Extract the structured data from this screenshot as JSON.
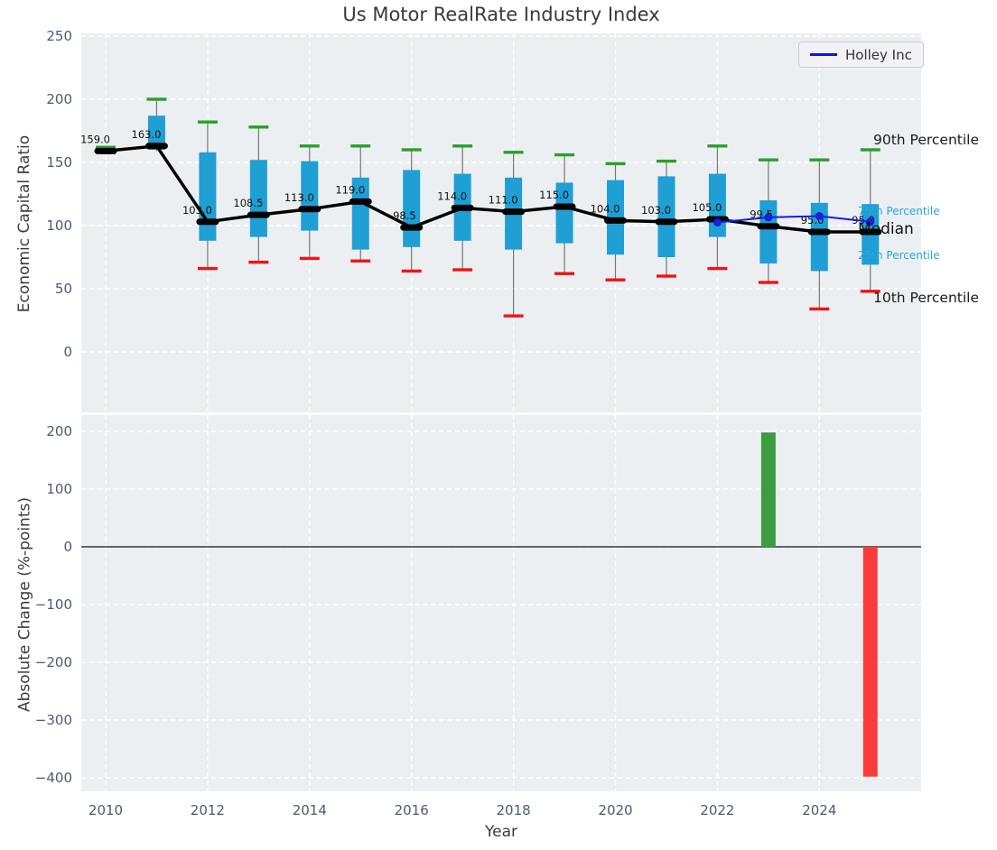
{
  "title": "Us Motor RealRate Industry Index",
  "legend": {
    "label": "Holley Inc"
  },
  "axes": {
    "top_ylabel": "Economic Capital Ratio",
    "bottom_ylabel": "Absolute Change (%-points)",
    "xlabel": "Year"
  },
  "annotations": {
    "p90": "90th Percentile",
    "p75": "75th Percentile",
    "median": "Median",
    "p25": "25th Percentile",
    "p10": "10th Percentile"
  },
  "colors": {
    "box_fill": "#1f9fd4",
    "cap_high": "#2aa02a",
    "cap_low": "#f11414",
    "whisker": "#777777",
    "median_line": "#000000",
    "company_line": "#1a1ae6",
    "company_dot": "#1f1fd8",
    "bar_positive": "#3d9c42",
    "bar_negative": "#fa3b3b",
    "plot_bg": "#eceff1",
    "grid": "#ffffff",
    "tick_text": "#4b5b72"
  },
  "chart_data": [
    {
      "type": "boxplot",
      "subplot": "top",
      "title": "Us Motor RealRate Industry Index",
      "ylabel": "Economic Capital Ratio",
      "ylim": [
        -48,
        252
      ],
      "yticks": [
        250,
        200,
        150,
        100,
        50,
        0
      ],
      "xlim": [
        2009.5,
        2026
      ],
      "xticks": [
        2010,
        2012,
        2014,
        2016,
        2018,
        2020,
        2022,
        2024
      ],
      "grid": true,
      "boxes": [
        {
          "year": 2010,
          "label": "159.0",
          "q10": 157.5,
          "q25": 158,
          "median": 159,
          "q75": 160.5,
          "q90": 162,
          "show_low_cap": false
        },
        {
          "year": 2011,
          "label": "163.0",
          "q10": 159,
          "q25": 160,
          "median": 163,
          "q75": 187,
          "q90": 200,
          "show_low_cap": false
        },
        {
          "year": 2012,
          "label": "103.0",
          "q10": 66,
          "q25": 88,
          "median": 103,
          "q75": 158,
          "q90": 182,
          "show_low_cap": true
        },
        {
          "year": 2013,
          "label": "108.5",
          "q10": 71,
          "q25": 91,
          "median": 108.5,
          "q75": 152,
          "q90": 178,
          "show_low_cap": true
        },
        {
          "year": 2014,
          "label": "113.0",
          "q10": 74,
          "q25": 96,
          "median": 113,
          "q75": 151,
          "q90": 163,
          "show_low_cap": true
        },
        {
          "year": 2015,
          "label": "119.0",
          "q10": 72,
          "q25": 81,
          "median": 119,
          "q75": 138,
          "q90": 163,
          "show_low_cap": true
        },
        {
          "year": 2016,
          "label": "98.5",
          "q10": 64,
          "q25": 83,
          "median": 98.5,
          "q75": 144,
          "q90": 160,
          "show_low_cap": true
        },
        {
          "year": 2017,
          "label": "114.0",
          "q10": 65,
          "q25": 88,
          "median": 114,
          "q75": 141,
          "q90": 163,
          "show_low_cap": true
        },
        {
          "year": 2018,
          "label": "111.0",
          "q10": 28.5,
          "q25": 81,
          "median": 111,
          "q75": 138,
          "q90": 158,
          "show_low_cap": true
        },
        {
          "year": 2019,
          "label": "115.0",
          "q10": 62,
          "q25": 86,
          "median": 115,
          "q75": 134,
          "q90": 156,
          "show_low_cap": true
        },
        {
          "year": 2020,
          "label": "104.0",
          "q10": 57,
          "q25": 77,
          "median": 104,
          "q75": 136,
          "q90": 149,
          "show_low_cap": true
        },
        {
          "year": 2021,
          "label": "103.0",
          "q10": 60,
          "q25": 75,
          "median": 103,
          "q75": 139,
          "q90": 151,
          "show_low_cap": true
        },
        {
          "year": 2022,
          "label": "105.0",
          "q10": 66,
          "q25": 91,
          "median": 105,
          "q75": 141,
          "q90": 163,
          "show_low_cap": true
        },
        {
          "year": 2023,
          "label": "99.5",
          "q10": 55,
          "q25": 70,
          "median": 99.5,
          "q75": 120,
          "q90": 152,
          "show_low_cap": true
        },
        {
          "year": 2024,
          "label": "95.0",
          "q10": 34,
          "q25": 64,
          "median": 95,
          "q75": 118,
          "q90": 152,
          "show_low_cap": true
        },
        {
          "year": 2025,
          "label": "95.0",
          "q10": 48,
          "q25": 69,
          "median": 95,
          "q75": 117,
          "q90": 160,
          "show_low_cap": true
        }
      ],
      "median_line": true,
      "series": [
        {
          "name": "Holley Inc",
          "x": [
            2022,
            2023,
            2024,
            2025
          ],
          "y": [
            102.5,
            106.5,
            107.5,
            103
          ]
        }
      ],
      "legend_position": "upper right",
      "right_labels": [
        "90th Percentile",
        "75th Percentile",
        "Median",
        "25th Percentile",
        "10th Percentile"
      ]
    },
    {
      "type": "bar",
      "subplot": "bottom",
      "ylabel": "Absolute Change (%-points)",
      "ylim": [
        -423,
        228
      ],
      "yticks": [
        200,
        100,
        0,
        -100,
        -200,
        -300,
        -400
      ],
      "xlim": [
        2009.5,
        2026
      ],
      "xticks": [
        2010,
        2012,
        2014,
        2016,
        2018,
        2020,
        2022,
        2024
      ],
      "xlabel": "Year",
      "grid": true,
      "zero_line": true,
      "bars": [
        {
          "year": 2023,
          "value": 198,
          "color": "#3d9c42"
        },
        {
          "year": 2025,
          "value": -398,
          "color": "#fa3b3b"
        }
      ]
    }
  ]
}
